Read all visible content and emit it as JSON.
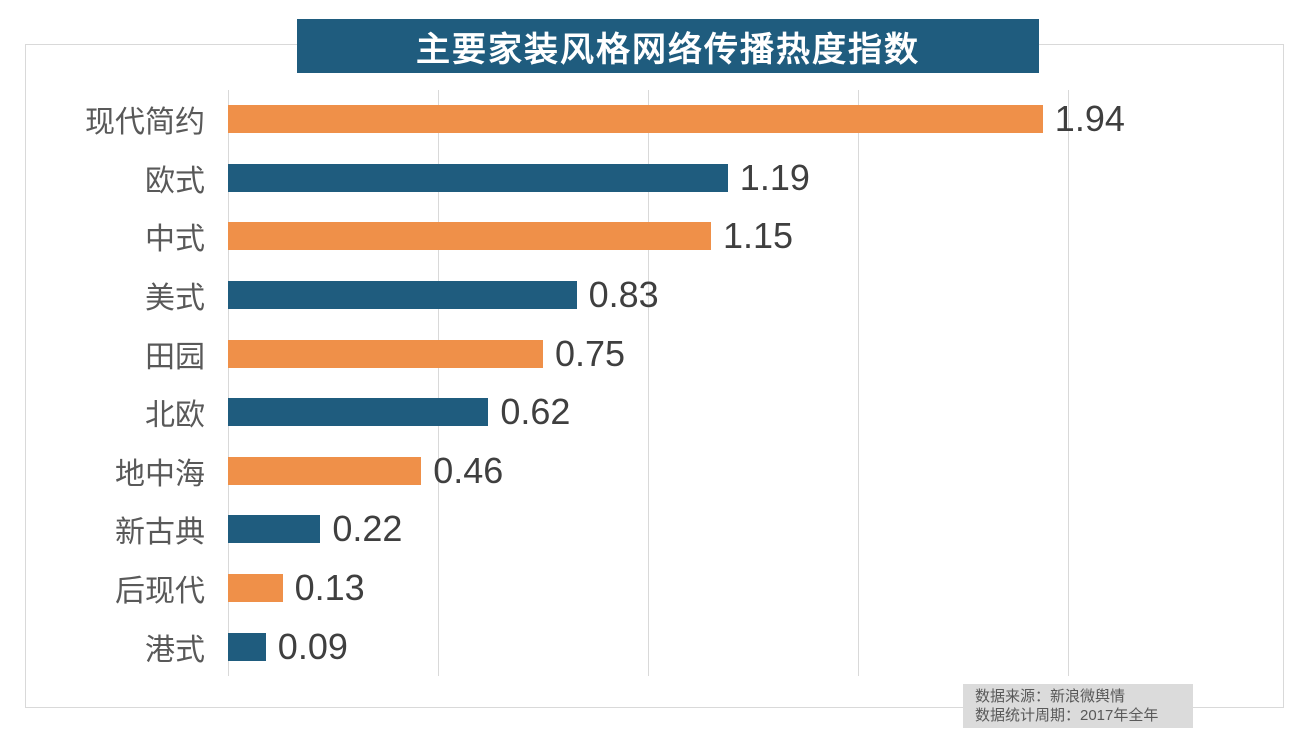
{
  "chart_data": {
    "type": "bar",
    "orientation": "horizontal",
    "title": "主要家装风格网络传播热度指数",
    "categories": [
      "现代简约",
      "欧式",
      "中式",
      "美式",
      "田园",
      "北欧",
      "地中海",
      "新古典",
      "后现代",
      "港式"
    ],
    "values": [
      1.94,
      1.19,
      1.15,
      0.83,
      0.75,
      0.62,
      0.46,
      0.22,
      0.13,
      0.09
    ],
    "value_labels": [
      "1.94",
      "1.19",
      "1.15",
      "0.83",
      "0.75",
      "0.62",
      "0.46",
      "0.22",
      "0.13",
      "0.09"
    ],
    "xlabel": "",
    "ylabel": "",
    "axis": {
      "min": 0,
      "max": 2.51,
      "grid_interval": 0.5,
      "grid_max": 2.0,
      "grid": true
    },
    "legend": "none",
    "sort": "descending",
    "bar_color_pattern": [
      "#EF9049",
      "#1F5C7E"
    ]
  },
  "colors": {
    "background": "#FFFFFF",
    "banner_bg": "#1F5C7E",
    "banner_text": "#FFFFFF",
    "bar_orange": "#EF9049",
    "bar_blue": "#1F5C7E",
    "gridline": "#D9D9D9",
    "frame_border": "#D9D9D9",
    "category_text": "#595959",
    "value_text": "#3F3F3F",
    "footer_bg": "#DBDBDB",
    "footer_text": "#595959"
  },
  "footer": {
    "lines": [
      "数据来源：新浪微舆情",
      "数据统计周期：2017年全年"
    ]
  }
}
